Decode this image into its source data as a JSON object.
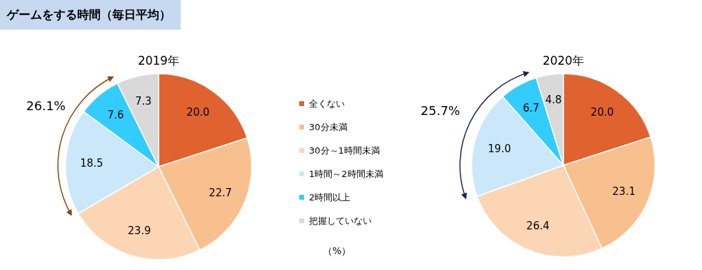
{
  "chart_data": {
    "type": "pie",
    "title": "ゲームをする時間（毎日平均）",
    "categories": [
      "全くない",
      "30分未満",
      "30分～1時間未満",
      "1時間～2時間未満",
      "2時間以上",
      "把握していない"
    ],
    "colors": [
      "#e0622e",
      "#f8c08f",
      "#fcd5b5",
      "#cbe8fb",
      "#33ccff",
      "#d9d9d9"
    ],
    "legend": "right",
    "annotations": [
      "26.1%",
      "25.7%",
      "（%）"
    ],
    "series": [
      {
        "name": "2019年",
        "values": [
          20.0,
          22.7,
          23.9,
          18.5,
          7.6,
          7.3
        ],
        "value_labels": [
          "20.0",
          "22.7",
          "23.9",
          "18.5",
          "7.6",
          "7.3"
        ]
      },
      {
        "name": "2020年",
        "values": [
          20.0,
          23.1,
          26.4,
          19.0,
          6.7,
          4.8
        ],
        "value_labels": [
          "20.0",
          "23.1",
          "26.4",
          "19.0",
          "6.7",
          "4.8"
        ]
      }
    ]
  }
}
